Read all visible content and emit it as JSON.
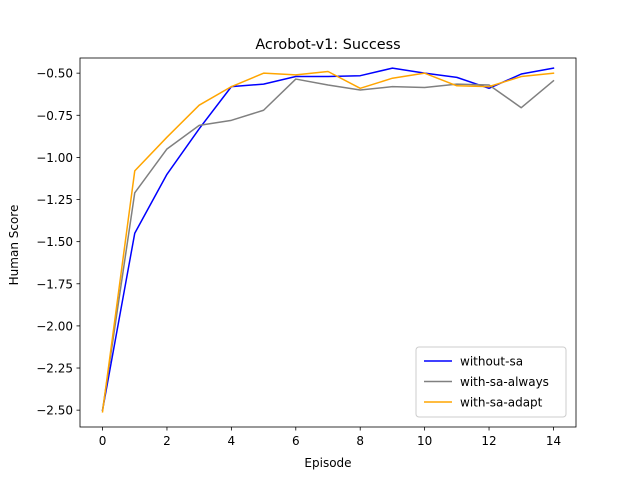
{
  "chart_data": {
    "type": "line",
    "title": "Acrobot-v1: Success",
    "xlabel": "Episode",
    "ylabel": "Human Score",
    "xlim": [
      -0.7,
      14.7
    ],
    "ylim": [
      -2.6,
      -0.41
    ],
    "xticks": [
      0,
      2,
      4,
      6,
      8,
      10,
      12,
      14
    ],
    "xtick_labels": [
      "0",
      "2",
      "4",
      "6",
      "8",
      "10",
      "12",
      "14"
    ],
    "yticks": [
      -2.5,
      -2.25,
      -2.0,
      -1.75,
      -1.5,
      -1.25,
      -1.0,
      -0.75,
      -0.5
    ],
    "ytick_labels": [
      "−2.50",
      "−2.25",
      "−2.00",
      "−1.75",
      "−1.50",
      "−1.25",
      "−1.00",
      "−0.75",
      "−0.50"
    ],
    "grid": false,
    "legend_position": "lower right",
    "x": [
      0,
      1,
      2,
      3,
      4,
      5,
      6,
      7,
      8,
      9,
      10,
      11,
      12,
      13,
      14
    ],
    "series": [
      {
        "name": "without-sa",
        "color": "#0000ff",
        "values": [
          -2.5,
          -1.45,
          -1.1,
          -0.83,
          -0.58,
          -0.565,
          -0.52,
          -0.52,
          -0.515,
          -0.47,
          -0.5,
          -0.525,
          -0.59,
          -0.505,
          -0.47
        ]
      },
      {
        "name": "with-sa-always",
        "color": "#808080",
        "values": [
          -2.5,
          -1.21,
          -0.95,
          -0.81,
          -0.78,
          -0.72,
          -0.535,
          -0.57,
          -0.6,
          -0.58,
          -0.585,
          -0.565,
          -0.57,
          -0.705,
          -0.545
        ]
      },
      {
        "name": "with-sa-adapt",
        "color": "#ffa500",
        "values": [
          -2.51,
          -1.08,
          -0.88,
          -0.69,
          -0.58,
          -0.5,
          -0.51,
          -0.49,
          -0.59,
          -0.53,
          -0.5,
          -0.575,
          -0.58,
          -0.52,
          -0.5
        ]
      }
    ]
  }
}
